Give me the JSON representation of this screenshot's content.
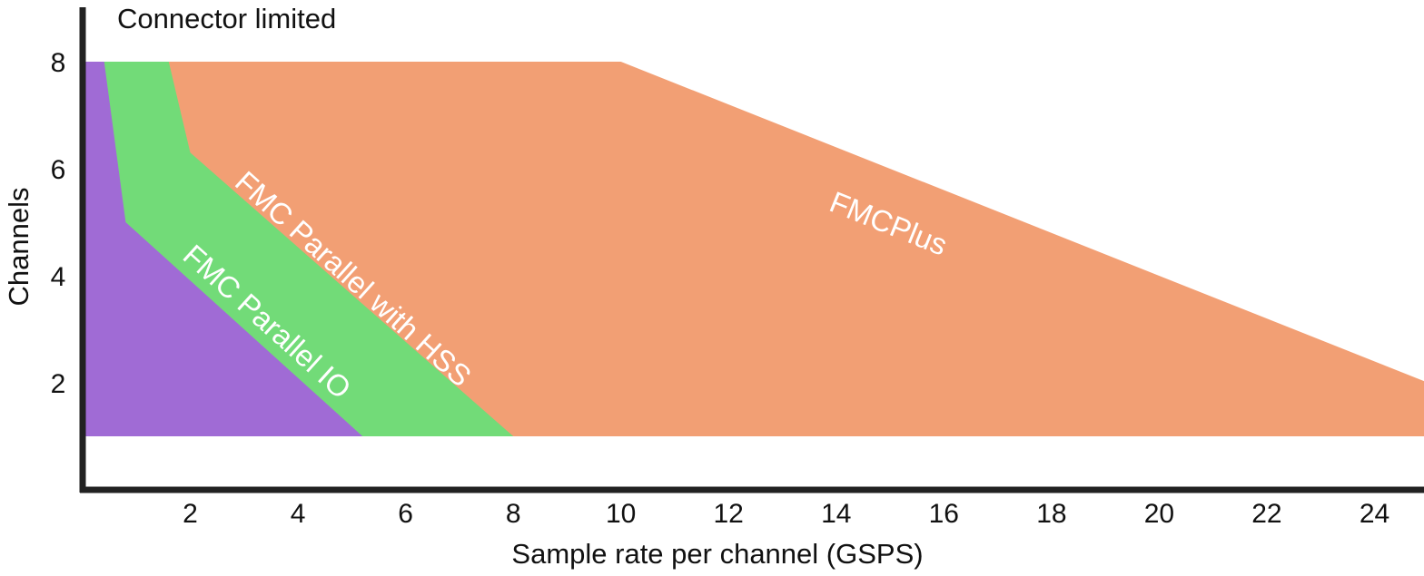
{
  "chart_data": {
    "type": "area",
    "title": "",
    "xlabel": "Sample rate per channel (GSPS)",
    "ylabel": "Channels",
    "xlim": [
      0,
      25
    ],
    "ylim": [
      0,
      9
    ],
    "x_ticks": [
      2,
      4,
      6,
      8,
      10,
      12,
      14,
      16,
      18,
      20,
      22,
      24
    ],
    "y_ticks": [
      2,
      4,
      6,
      8
    ],
    "grid": false,
    "annotation": "Connector limited",
    "series": [
      {
        "name": "FMCPlus",
        "color": "#f29f74",
        "points": [
          [
            1.6,
            8
          ],
          [
            10,
            8
          ],
          [
            25,
            2
          ],
          [
            25,
            1
          ],
          [
            0,
            1
          ],
          [
            0,
            8
          ]
        ]
      },
      {
        "name": "FMC Parallel with HSS",
        "color": "#72db78",
        "points": [
          [
            0,
            8
          ],
          [
            1.6,
            8
          ],
          [
            2,
            6.3
          ],
          [
            8,
            1
          ],
          [
            0,
            1
          ]
        ]
      },
      {
        "name": "FMC Parallel IO",
        "color": "#a06bd5",
        "points": [
          [
            0,
            8
          ],
          [
            0.4,
            8
          ],
          [
            0.8,
            5
          ],
          [
            5.2,
            1
          ],
          [
            0,
            1
          ]
        ]
      }
    ]
  }
}
